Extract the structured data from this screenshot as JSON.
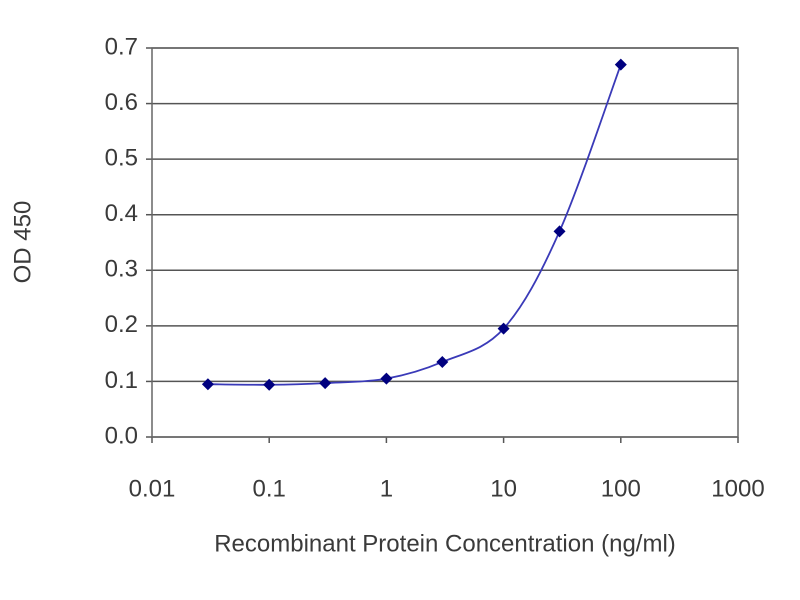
{
  "chart_data": {
    "type": "line",
    "xlabel": "Recombinant Protein Concentration (ng/ml)",
    "ylabel": "OD 450",
    "x": [
      0.03,
      0.1,
      0.3,
      1,
      3,
      10,
      30,
      100
    ],
    "values": [
      0.095,
      0.094,
      0.097,
      0.105,
      0.135,
      0.195,
      0.37,
      0.67
    ],
    "color": "#00007f",
    "line_color": "#3a3ab8",
    "xscale": "log",
    "xlim": [
      0.01,
      1000
    ],
    "xticks": [
      0.01,
      0.1,
      1,
      10,
      100,
      1000
    ],
    "ylim": [
      0,
      0.7
    ],
    "yticks": [
      {
        "value": 0,
        "label": "0.0"
      },
      0.1,
      0.2,
      0.3,
      0.4,
      0.5,
      0.6,
      0.7
    ],
    "grid": true
  }
}
